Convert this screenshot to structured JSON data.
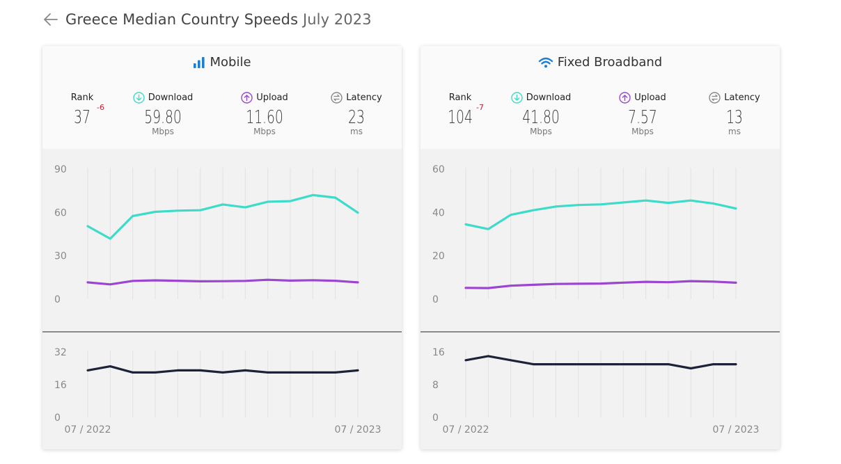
{
  "header": {
    "title": "Greece Median Country Speeds",
    "period": "July 2023"
  },
  "colors": {
    "download": "#3ddbc9",
    "upload": "#9b45d1",
    "latency": "#1c2238",
    "mobile_icon": "#1f7fcf",
    "rank_change": "#c3202d"
  },
  "labels": {
    "rank": "Rank",
    "download": "Download",
    "upload": "Upload",
    "latency": "Latency"
  },
  "cards": [
    {
      "title": "Mobile",
      "icon": "signal-bars-icon",
      "rank": "37",
      "rank_change": "-6",
      "download": "59.80",
      "download_unit": "Mbps",
      "upload": "11.60",
      "upload_unit": "Mbps",
      "latency": "23",
      "latency_unit": "ms"
    },
    {
      "title": "Fixed Broadband",
      "icon": "wifi-icon",
      "rank": "104",
      "rank_change": "-7",
      "download": "41.80",
      "download_unit": "Mbps",
      "upload": "7.57",
      "upload_unit": "Mbps",
      "latency": "13",
      "latency_unit": "ms"
    }
  ],
  "chart_data": [
    {
      "type": "line",
      "panel": "mobile-speed",
      "x": [
        "07/2022",
        "08/2022",
        "09/2022",
        "10/2022",
        "11/2022",
        "12/2022",
        "01/2023",
        "02/2023",
        "03/2023",
        "04/2023",
        "05/2023",
        "06/2023",
        "07/2023"
      ],
      "ylim": [
        0,
        90
      ],
      "yticks": [
        0,
        30,
        60,
        90
      ],
      "series": [
        {
          "name": "Download",
          "values": [
            50.5,
            41.8,
            57.5,
            60.4,
            61.2,
            61.5,
            65.5,
            63.5,
            67.4,
            67.8,
            72,
            70.2,
            59.8
          ]
        },
        {
          "name": "Upload",
          "values": [
            11.6,
            10.2,
            12.6,
            13,
            12.7,
            12.3,
            12.4,
            12.6,
            13.4,
            12.8,
            13.1,
            12.7,
            11.6
          ]
        }
      ]
    },
    {
      "type": "line",
      "panel": "mobile-latency",
      "x": [
        "07/2022",
        "08/2022",
        "09/2022",
        "10/2022",
        "11/2022",
        "12/2022",
        "01/2023",
        "02/2023",
        "03/2023",
        "04/2023",
        "05/2023",
        "06/2023",
        "07/2023"
      ],
      "ylim": [
        0,
        32
      ],
      "yticks": [
        0,
        16,
        32
      ],
      "xtick_labels": [
        "07 / 2022",
        "07 / 2023"
      ],
      "series": [
        {
          "name": "Latency",
          "values": [
            23,
            25,
            22,
            22,
            23,
            23,
            22,
            23,
            22,
            22,
            22,
            22,
            23
          ]
        }
      ]
    },
    {
      "type": "line",
      "panel": "fixed-speed",
      "x": [
        "07/2022",
        "08/2022",
        "09/2022",
        "10/2022",
        "11/2022",
        "12/2022",
        "01/2023",
        "02/2023",
        "03/2023",
        "04/2023",
        "05/2023",
        "06/2023",
        "07/2023"
      ],
      "ylim": [
        0,
        60
      ],
      "yticks": [
        0,
        20,
        40,
        60
      ],
      "series": [
        {
          "name": "Download",
          "values": [
            34.5,
            32.3,
            38.9,
            41,
            42.7,
            43.4,
            43.7,
            44.6,
            45.5,
            44.4,
            45.5,
            44.1,
            41.8
          ]
        },
        {
          "name": "Upload",
          "values": [
            5.2,
            5.1,
            6.2,
            6.6,
            7,
            7.1,
            7.2,
            7.6,
            8,
            7.8,
            8.3,
            8.1,
            7.57
          ]
        }
      ]
    },
    {
      "type": "line",
      "panel": "fixed-latency",
      "x": [
        "07/2022",
        "08/2022",
        "09/2022",
        "10/2022",
        "11/2022",
        "12/2022",
        "01/2023",
        "02/2023",
        "03/2023",
        "04/2023",
        "05/2023",
        "06/2023",
        "07/2023"
      ],
      "ylim": [
        0,
        16
      ],
      "yticks": [
        0,
        8,
        16
      ],
      "xtick_labels": [
        "07 / 2022",
        "07 / 2023"
      ],
      "series": [
        {
          "name": "Latency",
          "values": [
            14,
            15,
            14,
            13,
            13,
            13,
            13,
            13,
            13,
            13,
            12,
            13,
            13
          ]
        }
      ]
    }
  ]
}
